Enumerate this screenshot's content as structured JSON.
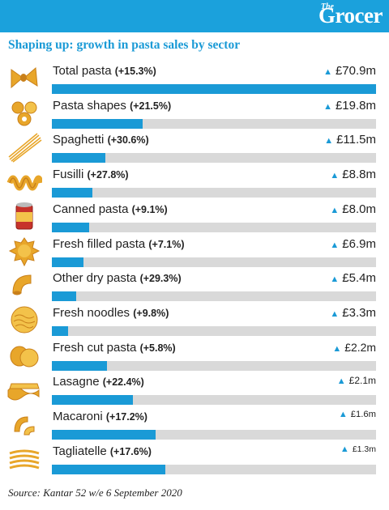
{
  "header": {
    "logo_the": "The",
    "logo_word": "Grocer",
    "title": "Shaping up: growth in pasta sales by sector"
  },
  "source": "Source: Kantar 52 w/e 6 September 2020",
  "colors": {
    "accent": "#1a9ad6",
    "track": "#d9d9d9",
    "pasta": "#e8a62a"
  },
  "chart_data": {
    "type": "bar",
    "title": "Shaping up: growth in pasta sales by sector",
    "categories": [
      "Total pasta",
      "Pasta shapes",
      "Spaghetti",
      "Fusilli",
      "Canned pasta",
      "Fresh filled pasta",
      "Other dry pasta",
      "Fresh noodles",
      "Fresh cut pasta",
      "Lasagne",
      "Macaroni",
      "Tagliatelle"
    ],
    "growth_labels": [
      "(+15.3%)",
      "(+21.5%)",
      "(+30.6%)",
      "(+27.8%)",
      "(+9.1%)",
      "(+7.1%)",
      "(+29.3%)",
      "(+9.8%)",
      "(+5.8%)",
      "(+22.4%)",
      "(+17.2%)",
      "(+17.6%)"
    ],
    "growth_pct": [
      15.3,
      21.5,
      30.6,
      27.8,
      9.1,
      7.1,
      29.3,
      9.8,
      5.8,
      22.4,
      17.2,
      17.6
    ],
    "value_labels": [
      "£70.9m",
      "£19.8m",
      "£11.5m",
      "£8.8m",
      "£8.0m",
      "£6.9m",
      "£5.4m",
      "£3.3m",
      "£2.2m",
      "£2.1m",
      "£1.6m",
      "£1.3m"
    ],
    "values": [
      70.9,
      19.8,
      11.5,
      8.8,
      8.0,
      6.9,
      5.4,
      3.3,
      2.2,
      2.1,
      1.6,
      1.3
    ],
    "bar_share": [
      1.0,
      0.28,
      0.165,
      0.125,
      0.115,
      0.097,
      0.075,
      0.05,
      0.17,
      0.25,
      0.32,
      0.35
    ],
    "value_font_scale": [
      1,
      1,
      1,
      1,
      1,
      1,
      1,
      1,
      0.93,
      0.8,
      0.75,
      0.7
    ],
    "icons": [
      "farfalle-icon",
      "pasta-shapes-icon",
      "spaghetti-icon",
      "fusilli-icon",
      "canned-pasta-icon",
      "fresh-filled-pasta-icon",
      "other-dry-pasta-icon",
      "fresh-noodles-icon",
      "fresh-cut-pasta-icon",
      "lasagne-icon",
      "macaroni-icon",
      "tagliatelle-icon"
    ],
    "trend": "up",
    "xlim": [
      0,
      70.9
    ],
    "grid": false,
    "legend": "none"
  }
}
